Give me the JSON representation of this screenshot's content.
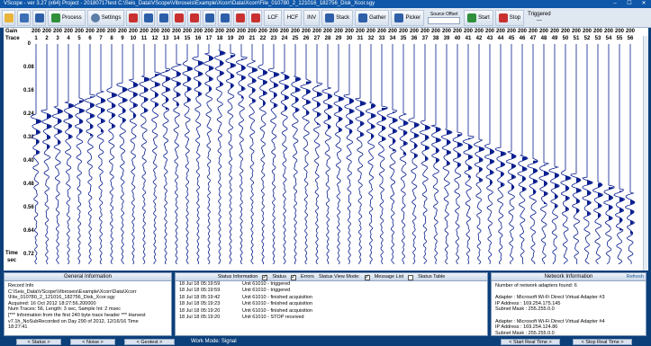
{
  "window": {
    "title": "VScope - ver 3.27 (x64)     Project - 20180717test     C:\\Seis_Data\\VScope\\Vibroseis\\Example\\Xcorr\\Data\\Xcorr\\File_010780_2_121016_182756_Disk_Xcor.sgy",
    "minimize": "–",
    "maximize": "☐",
    "close": "✕"
  },
  "toolbar": {
    "process": "Process",
    "settings": "Settings",
    "lcf": "LCF",
    "hcf": "HCF",
    "inv": "INV",
    "stack": "Stack",
    "gather": "Gather",
    "picker": "Picker",
    "source_offset_label": "Source Offset",
    "source_offset_value": "",
    "start": "Start",
    "stop": "Stop",
    "triggered": "Triggered",
    "triggered_count": "---"
  },
  "plot": {
    "gain_label": "Gain",
    "trace_label": "Trace",
    "time_label": "Time",
    "time_unit": "sec",
    "gains": [
      "200",
      "200",
      "200",
      "200",
      "200",
      "200",
      "200",
      "200",
      "200",
      "200",
      "200",
      "200",
      "200",
      "200",
      "200",
      "200",
      "200",
      "200",
      "200",
      "200",
      "200",
      "200",
      "200",
      "200",
      "200",
      "200",
      "200",
      "200",
      "200",
      "200",
      "200",
      "200",
      "200",
      "200",
      "200",
      "200",
      "200",
      "200",
      "200",
      "200",
      "200",
      "200",
      "200",
      "200",
      "200",
      "200",
      "200",
      "200",
      "200",
      "200",
      "200",
      "200",
      "200",
      "200",
      "200",
      "200"
    ],
    "traces": [
      "1",
      "2",
      "3",
      "4",
      "5",
      "6",
      "7",
      "8",
      "9",
      "10",
      "11",
      "12",
      "13",
      "14",
      "15",
      "16",
      "17",
      "18",
      "19",
      "20",
      "21",
      "22",
      "23",
      "24",
      "25",
      "26",
      "27",
      "28",
      "29",
      "30",
      "31",
      "32",
      "33",
      "34",
      "35",
      "36",
      "37",
      "38",
      "39",
      "40",
      "41",
      "42",
      "43",
      "44",
      "45",
      "46",
      "47",
      "48",
      "49",
      "50",
      "51",
      "52",
      "53",
      "54",
      "55",
      "56"
    ],
    "time_ticks": [
      "0",
      "0.08",
      "0.16",
      "0.24",
      "0.32",
      "0.40",
      "0.48",
      "0.56",
      "0.64",
      "0.72"
    ],
    "trace_color": "#0a1f8f"
  },
  "general": {
    "title": "General Information",
    "lines": [
      "Record Info",
      "C:\\Seis_Data\\VScope\\Vibroseis\\Example\\Xcorr\\Data\\Xcorr",
      "\\File_010780_2_121016_182756_Disk_Xcor.sgy",
      "Acquired: 16 Oct 2012 18:27:56.200000",
      "Num Traces: 56, Length: 3 sec, Sample Int: 2 msec",
      "[*** Information from the first 240 byte trace header *** Harvest",
      "v7.1h_NoSubRecorded on Day 290 of 2012, 12/16/16  Time",
      "18:27:41"
    ]
  },
  "status": {
    "title": "Status Information",
    "status_cb": "Status",
    "errors_cb": "Errors",
    "view_mode": "Status View Mode:",
    "message_list": "Message List",
    "status_table": "Status Table",
    "log": [
      {
        "time": "18 Jul 18  05:19:59",
        "msg": "Unit 61010 - triggered"
      },
      {
        "time": "18 Jul 18  05:19:59",
        "msg": "Unit 61010 - triggered"
      },
      {
        "time": "18 Jul 18  05:19:42",
        "msg": "Unit 61010 - finished acquisition"
      },
      {
        "time": "18 Jul 18  05:19:23",
        "msg": "Unit 61010 - finished acquisition"
      },
      {
        "time": "18 Jul 18  05:19:20",
        "msg": "Unit 61010 - finished acquisition"
      },
      {
        "time": "18 Jul 18  05:19:20",
        "msg": "Unit 61010 - STOP received"
      }
    ]
  },
  "network": {
    "title": "Network Information",
    "refresh": "Refresh",
    "lines": [
      "Number of network adapters found: 6",
      "",
      "Adapter :  Microsoft Wi-Fi Direct Virtual Adapter #3",
      "IP Address :  169.254.175.145",
      "Subnet Mask :  255.255.0.0",
      "",
      "Adapter :  Microsoft Wi-Fi Direct Virtual Adapter #4",
      "IP Address :  169.254.124.86",
      "Subnet Mask :  255.255.0.0"
    ]
  },
  "statusbar": {
    "status_btn": "< Status >",
    "noise_btn": "< Noise >",
    "geotest_btn": "< Geotest >",
    "work_mode": "Work Mode: Signal",
    "start_rt": "< Start Real Time >",
    "stop_rt": "< Stop Real Time >"
  }
}
